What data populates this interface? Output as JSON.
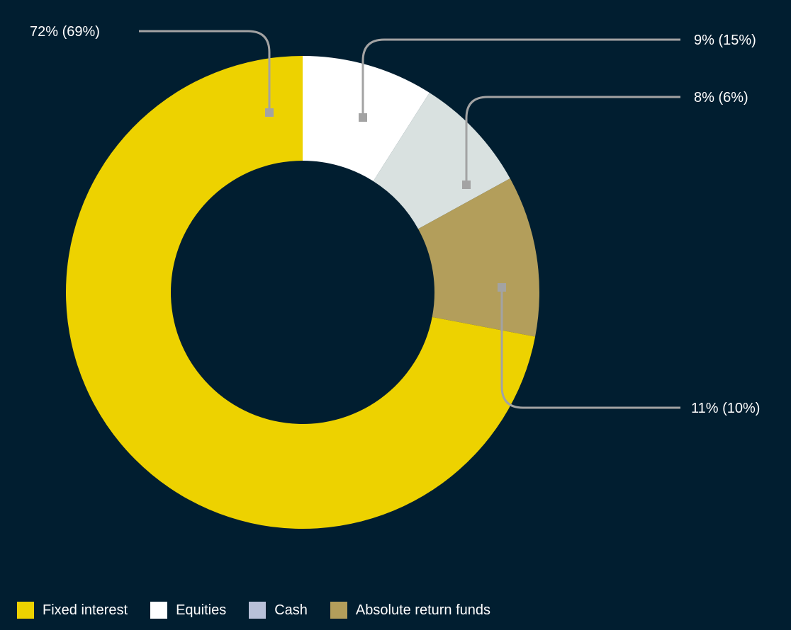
{
  "chart_data": {
    "type": "pie",
    "donut": true,
    "title": "",
    "background": "#011e30",
    "slices": [
      {
        "name": "Fixed interest",
        "value": 72,
        "comparison": 69,
        "label": "72% (69%)",
        "color": "#edd200"
      },
      {
        "name": "Equities",
        "value": 9,
        "comparison": 15,
        "label": "9% (15%)",
        "color": "#ffffff"
      },
      {
        "name": "Cash",
        "value": 8,
        "comparison": 6,
        "label": "8% (6%)",
        "color": "#d9e1e0"
      },
      {
        "name": "Absolute return funds",
        "value": 11,
        "comparison": 10,
        "label": "11% (10%)",
        "color": "#b39e5b"
      }
    ],
    "legend": {
      "placement": "bottom-left",
      "items": [
        {
          "label": "Fixed interest",
          "color": "#edd200"
        },
        {
          "label": "Equities",
          "color": "#ffffff"
        },
        {
          "label": "Cash",
          "color": "#b8c0d8"
        },
        {
          "label": "Absolute return funds",
          "color": "#b39e5b"
        }
      ]
    },
    "callout_line_color": "#a3a3a3"
  }
}
